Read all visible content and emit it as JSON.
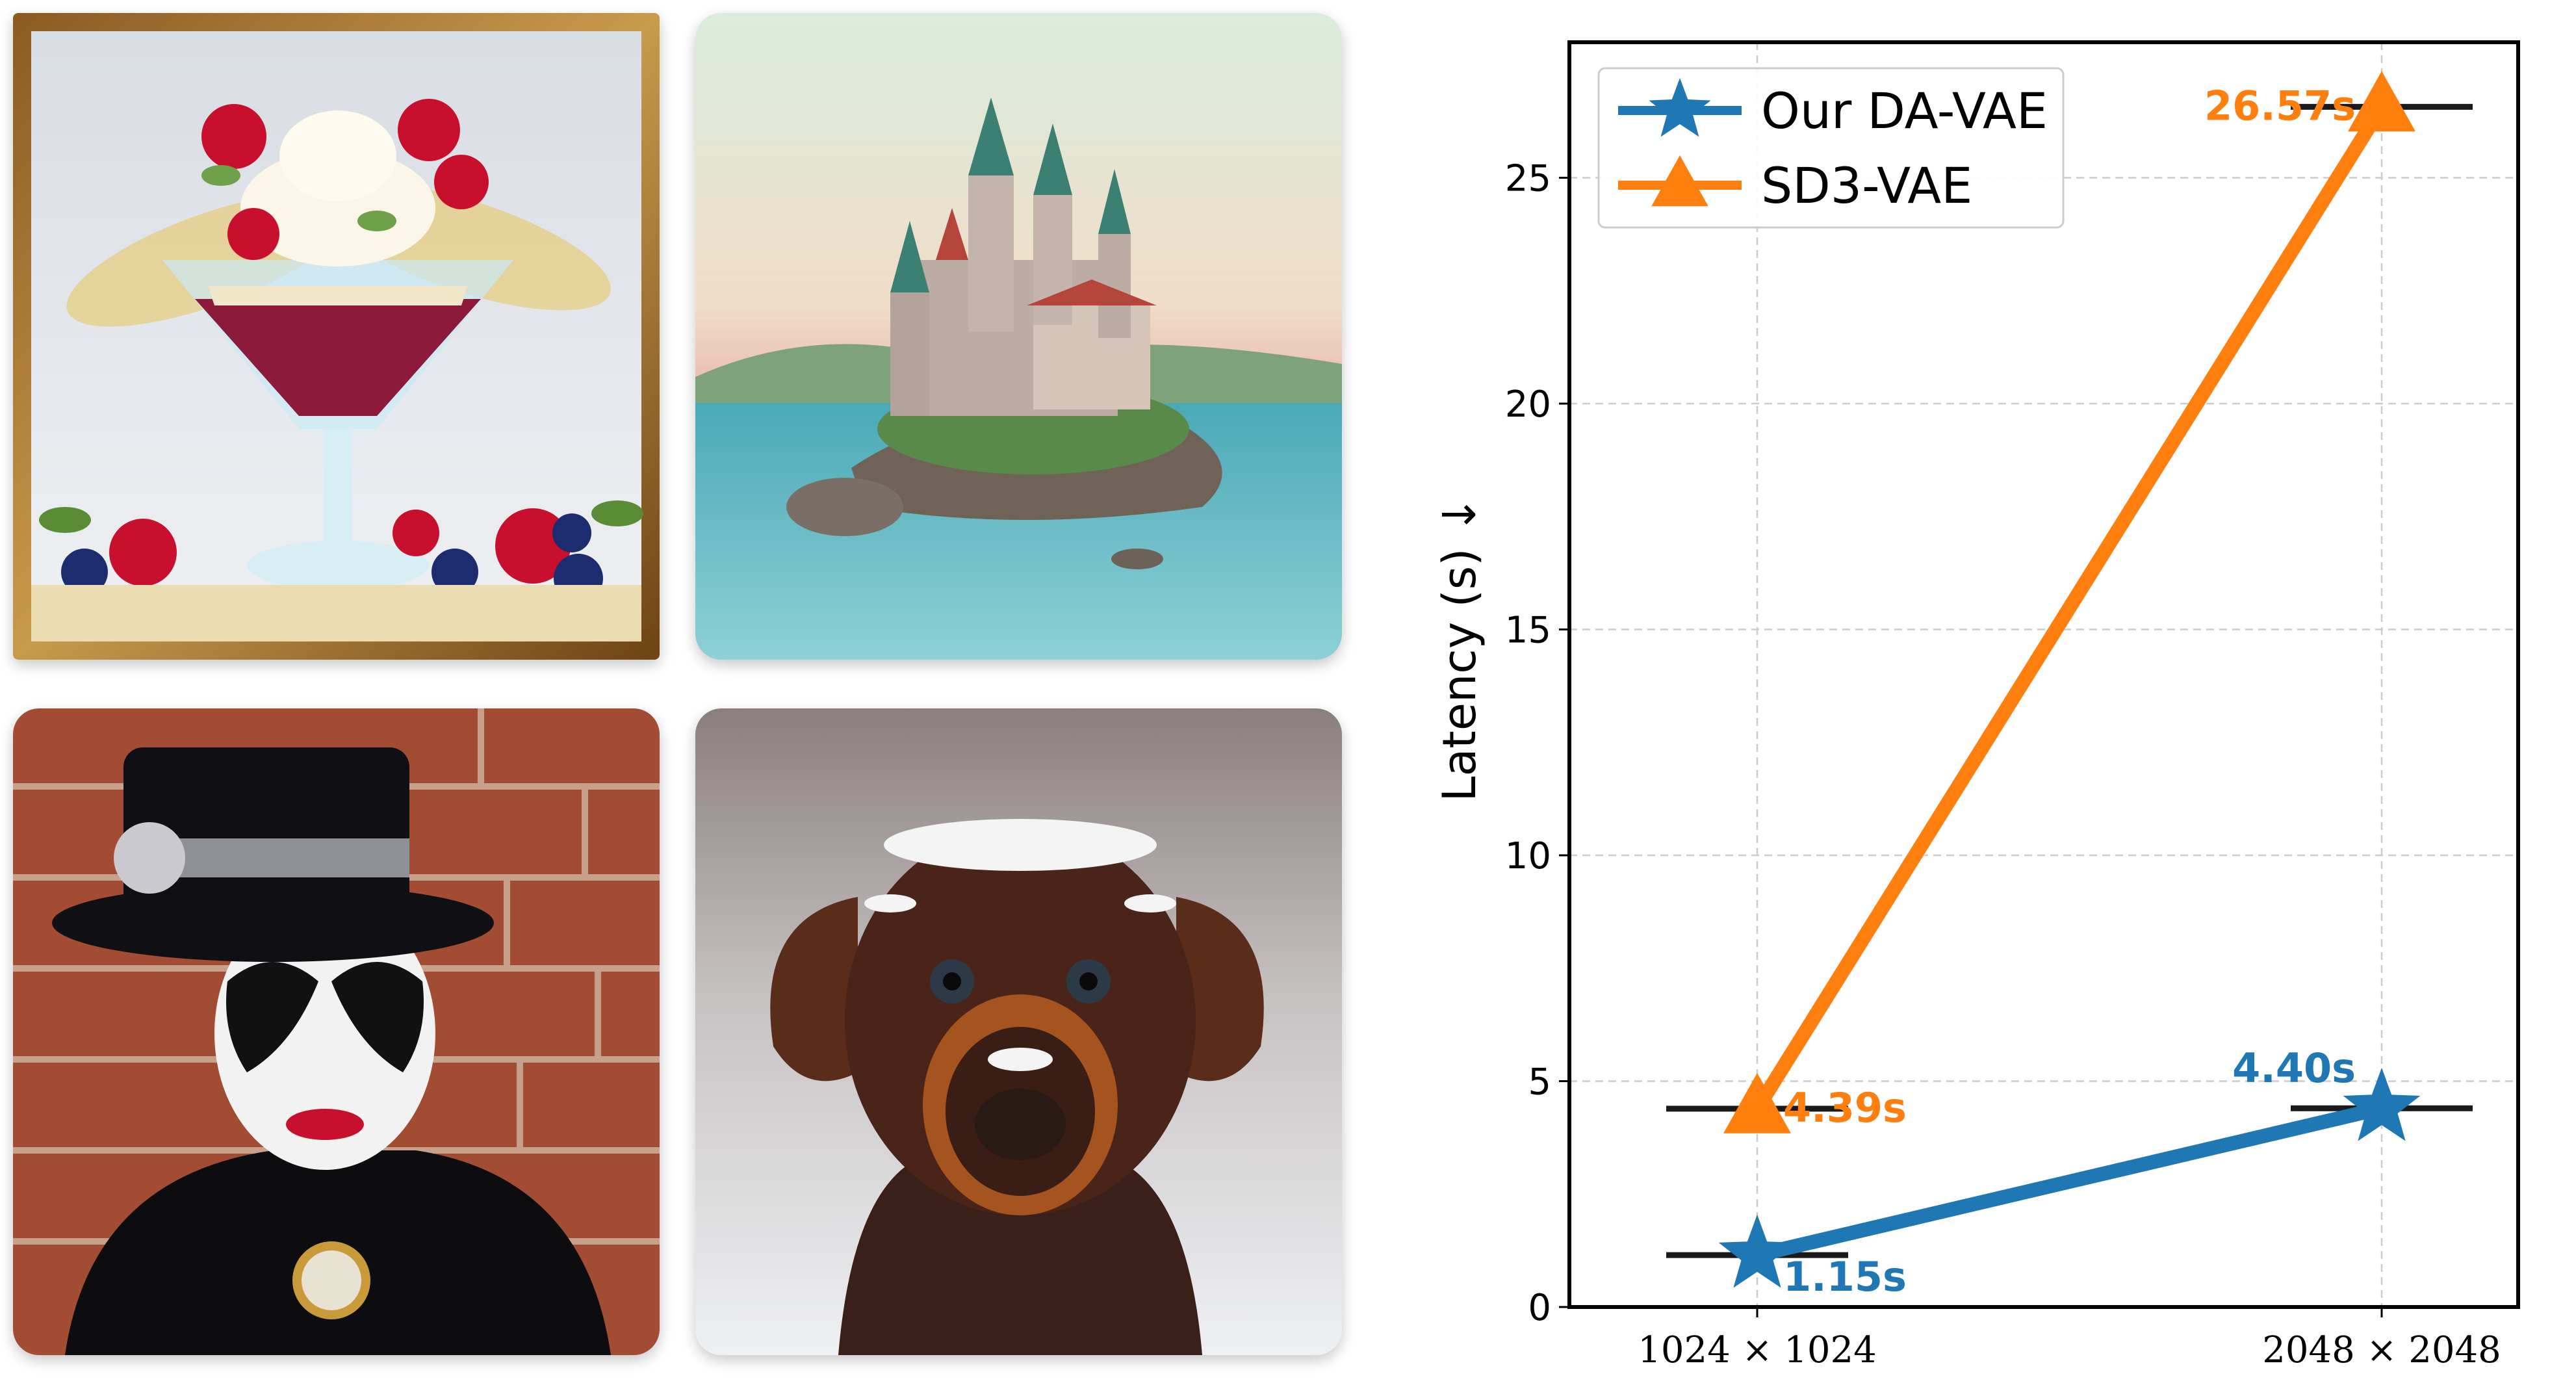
{
  "images": [
    {
      "name": "dessert-painting",
      "subject": "framed painting of a dessert glass with whipped cream, raspberries, blueberries and pistachios"
    },
    {
      "name": "castle-painting",
      "subject": "fairy-tale castle on a rocky island in a lake"
    },
    {
      "name": "masked-figure-photo",
      "subject": "person with black-and-white face paint and ornate top hat"
    },
    {
      "name": "dog-photo",
      "subject": "brown dog with snow on its head"
    }
  ],
  "colors": {
    "ours": "#1f77b4",
    "sd3": "#ff7f0e",
    "bracket": "#1a1a1a",
    "grid": "#cccccc"
  },
  "chart_data": {
    "type": "line",
    "title": "",
    "xlabel": "",
    "ylabel": "Latency (s) ↓",
    "categories": [
      "1024 × 1024",
      "2048 × 2048"
    ],
    "ylim": [
      0,
      28
    ],
    "yticks": [
      0,
      5,
      10,
      15,
      20,
      25
    ],
    "grid": true,
    "legend_position": "top-left",
    "series": [
      {
        "name": "Our DA-VAE",
        "marker": "star",
        "color": "#1f77b4",
        "values": [
          1.15,
          4.4
        ],
        "labels": [
          "1.15s",
          "4.40s"
        ]
      },
      {
        "name": "SD3-VAE",
        "marker": "triangle",
        "color": "#ff7f0e",
        "values": [
          4.39,
          26.57
        ],
        "labels": [
          "4.39s",
          "26.57s"
        ]
      }
    ]
  }
}
